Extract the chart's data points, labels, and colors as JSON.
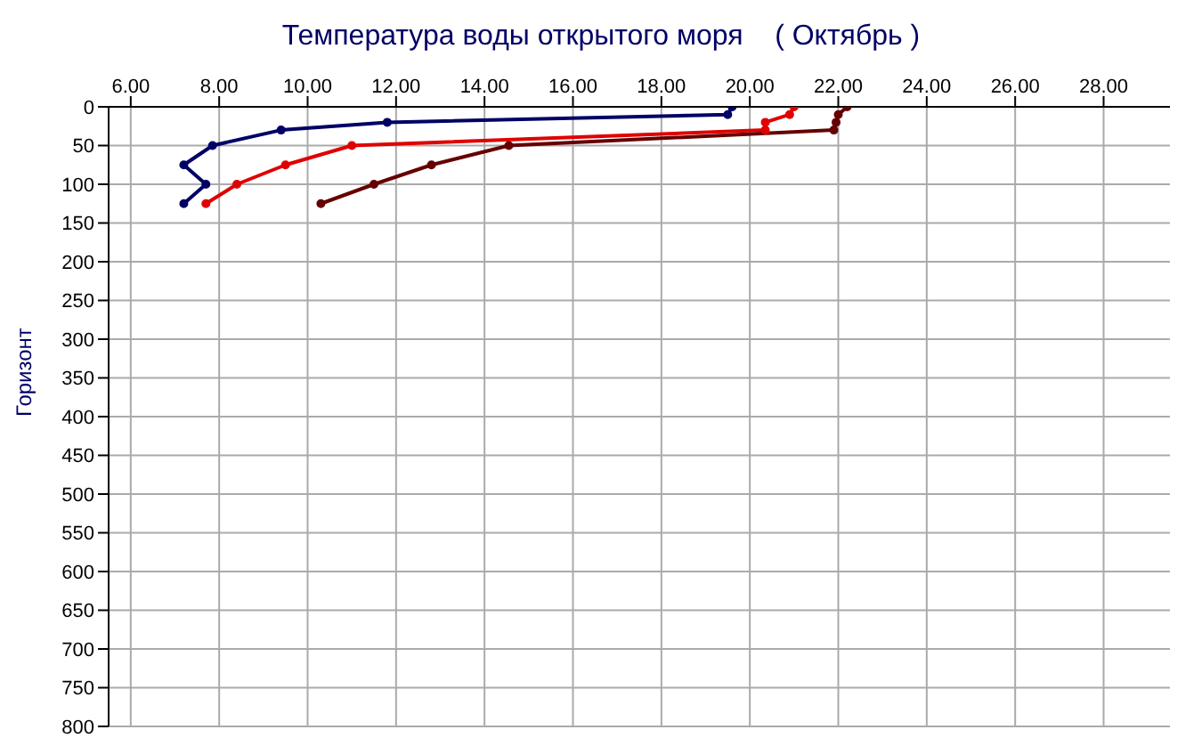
{
  "chart_data": {
    "type": "line",
    "title": "Температура воды открытого моря    ( Октябрь )",
    "ylabel": "Горизонт",
    "xlim": [
      5.5,
      29.5
    ],
    "xticks": [
      {
        "value": 6,
        "label": "6.00"
      },
      {
        "value": 8,
        "label": "8.00"
      },
      {
        "value": 10,
        "label": "10.00"
      },
      {
        "value": 12,
        "label": "12.00"
      },
      {
        "value": 14,
        "label": "14.00"
      },
      {
        "value": 16,
        "label": "16.00"
      },
      {
        "value": 18,
        "label": "18.00"
      },
      {
        "value": 20,
        "label": "20.00"
      },
      {
        "value": 22,
        "label": "22.00"
      },
      {
        "value": 24,
        "label": "24.00"
      },
      {
        "value": 26,
        "label": "26.00"
      },
      {
        "value": 28,
        "label": "28.00"
      }
    ],
    "ylim": [
      800,
      0
    ],
    "yticks": [
      0,
      50,
      100,
      150,
      200,
      250,
      300,
      350,
      400,
      450,
      500,
      550,
      600,
      650,
      700,
      750,
      800
    ],
    "grid": true,
    "marker": "circle",
    "line_style": "solid",
    "series": [
      {
        "color": "#000066",
        "x": [
          19.6,
          19.5,
          11.8,
          9.4,
          7.85,
          7.2,
          7.7,
          7.2
        ],
        "values": [
          0,
          10,
          20,
          30,
          50,
          75,
          100,
          125
        ]
      },
      {
        "color": "#e00000",
        "x": [
          21.0,
          20.9,
          20.35,
          20.35,
          11.0,
          9.5,
          8.4,
          7.7
        ],
        "values": [
          0,
          10,
          20,
          30,
          50,
          75,
          100,
          125
        ]
      },
      {
        "color": "#660000",
        "x": [
          22.2,
          22.0,
          21.95,
          21.9,
          14.55,
          12.8,
          11.5,
          10.3
        ],
        "values": [
          0,
          10,
          20,
          30,
          50,
          75,
          100,
          125
        ]
      }
    ]
  }
}
